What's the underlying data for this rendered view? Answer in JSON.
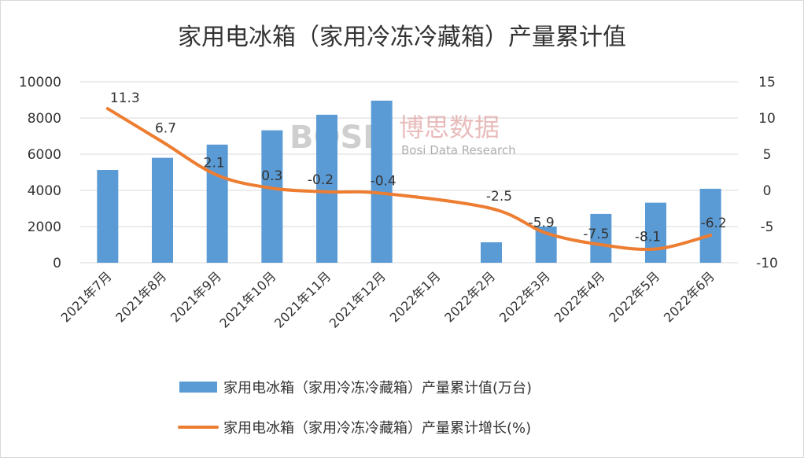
{
  "chart_data": {
    "type": "bar",
    "title": "家用电冰箱（家用冷冻冷藏箱）产量累计值",
    "categories": [
      "2021年7月",
      "2021年8月",
      "2021年9月",
      "2021年10月",
      "2021年11月",
      "2021年12月",
      "2022年1月",
      "2022年2月",
      "2022年3月",
      "2022年4月",
      "2022年5月",
      "2022年6月"
    ],
    "series": [
      {
        "name": "家用电冰箱（家用冷冻冷藏箱）产量累计值(万台)",
        "type": "bar",
        "axis": "left",
        "color": "#5b9bd5",
        "values": [
          5130,
          5800,
          6530,
          7320,
          8180,
          8960,
          null,
          1130,
          2000,
          2700,
          3320,
          4090
        ]
      },
      {
        "name": "家用电冰箱（家用冷冻冷藏箱）产量累计增长(%)",
        "type": "line",
        "axis": "right",
        "color": "#ed7d31",
        "values": [
          11.3,
          6.7,
          2.1,
          0.3,
          -0.2,
          -0.4,
          null,
          -2.5,
          -5.9,
          -7.5,
          -8.1,
          -6.2
        ],
        "labels": [
          "11.3",
          "6.7",
          "2.1",
          "0.3",
          "-0.2",
          "-0.4",
          "",
          "-2.5",
          "-5.9",
          "-7.5",
          "-8.1",
          "-6.2"
        ]
      }
    ],
    "y_left": {
      "min": 0,
      "max": 10000,
      "ticks": [
        "0",
        "2000",
        "4000",
        "6000",
        "8000",
        "10000"
      ]
    },
    "y_right": {
      "min": -10,
      "max": 15,
      "ticks": [
        "-10",
        "-5",
        "0",
        "5",
        "10",
        "15"
      ]
    },
    "legend_position": "bottom",
    "grid": true
  },
  "watermark": {
    "logo": "BOSI",
    "cn": "博思数据",
    "en": "Bosi Data Research"
  }
}
